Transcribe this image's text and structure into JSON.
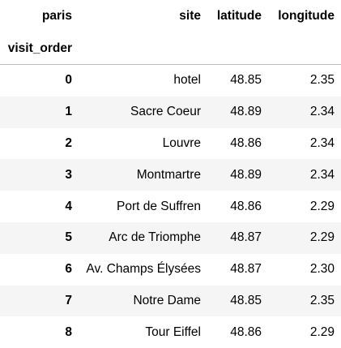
{
  "table": {
    "columns_name": "paris",
    "index_name": "visit_order",
    "headers": [
      "site",
      "latitude",
      "longitude"
    ],
    "rows": [
      {
        "index": "0",
        "site": "hotel",
        "latitude": "48.85",
        "longitude": "2.35"
      },
      {
        "index": "1",
        "site": "Sacre Coeur",
        "latitude": "48.89",
        "longitude": "2.34"
      },
      {
        "index": "2",
        "site": "Louvre",
        "latitude": "48.86",
        "longitude": "2.34"
      },
      {
        "index": "3",
        "site": "Montmartre",
        "latitude": "48.89",
        "longitude": "2.34"
      },
      {
        "index": "4",
        "site": "Port de Suffren",
        "latitude": "48.86",
        "longitude": "2.29"
      },
      {
        "index": "5",
        "site": "Arc de Triomphe",
        "latitude": "48.87",
        "longitude": "2.29"
      },
      {
        "index": "6",
        "site": "Av. Champs Élysées",
        "latitude": "48.87",
        "longitude": "2.30"
      },
      {
        "index": "7",
        "site": "Notre Dame",
        "latitude": "48.85",
        "longitude": "2.35"
      },
      {
        "index": "8",
        "site": "Tour Eiffel",
        "latitude": "48.86",
        "longitude": "2.29"
      }
    ]
  }
}
